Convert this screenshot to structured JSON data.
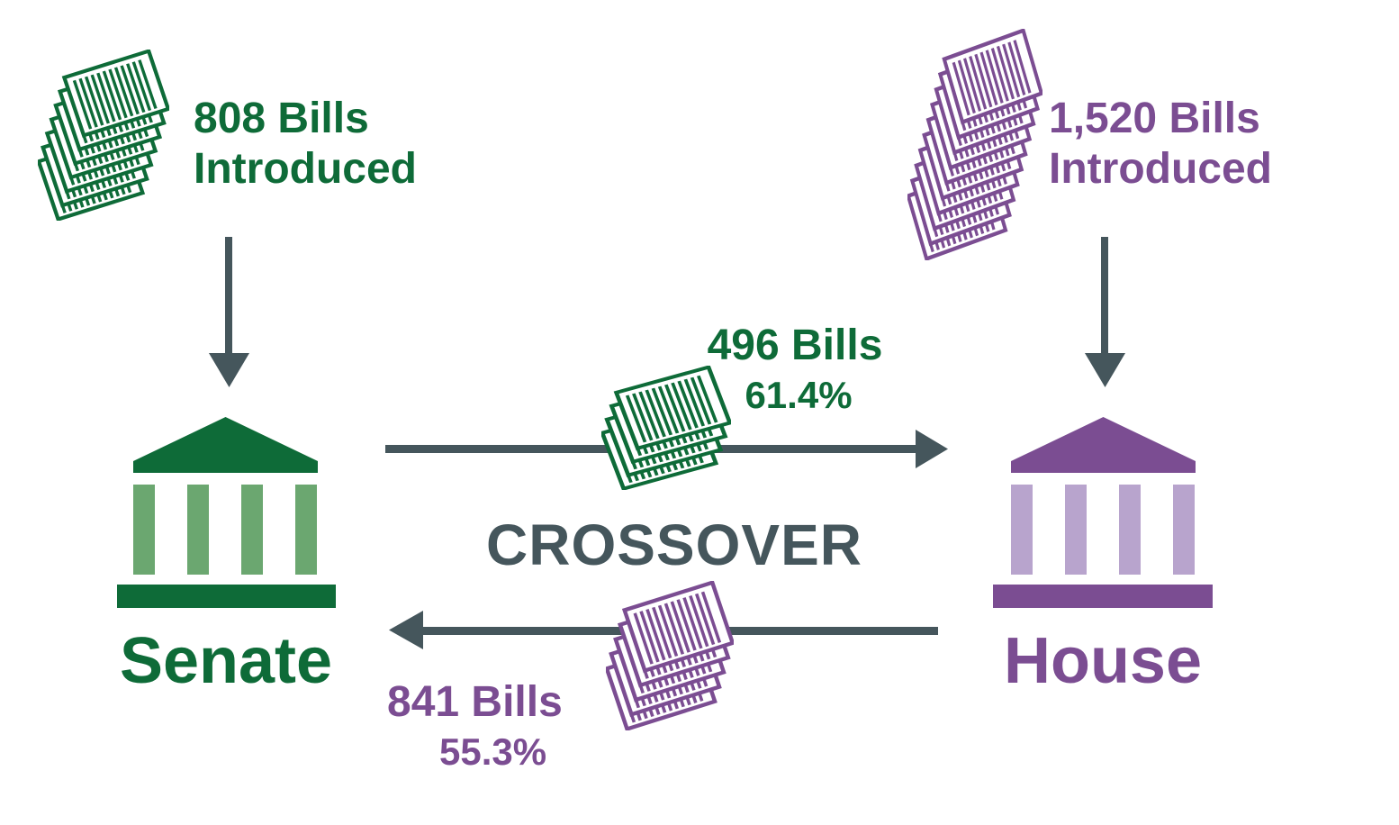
{
  "palette": {
    "green": "#0E6B38",
    "green_light": "#6BA770",
    "purple": "#7B4D92",
    "purple_light": "#B8A4CD",
    "slate": "#45565C"
  },
  "senate": {
    "name": "Senate",
    "bills_introduced_line1": "808 Bills",
    "bills_introduced_line2": "Introduced"
  },
  "house": {
    "name": "House",
    "bills_introduced_line1": "1,520 Bills",
    "bills_introduced_line2": "Introduced"
  },
  "crossover": {
    "label": "CROSSOVER",
    "senate_to_house": {
      "bills": "496 Bills",
      "percent": "61.4%"
    },
    "house_to_senate": {
      "bills": "841 Bills",
      "percent": "55.3%"
    }
  },
  "icons": {
    "senate_intro_stack": "bill-stack-icon",
    "house_intro_stack": "bill-stack-icon",
    "senate_to_house_stack": "bill-stack-icon",
    "house_to_senate_stack": "bill-stack-icon",
    "senate_building": "senate-building-icon",
    "house_building": "house-building-icon",
    "arrows": [
      "down-arrow-icon",
      "down-arrow-icon",
      "right-arrow-icon",
      "left-arrow-icon"
    ]
  }
}
